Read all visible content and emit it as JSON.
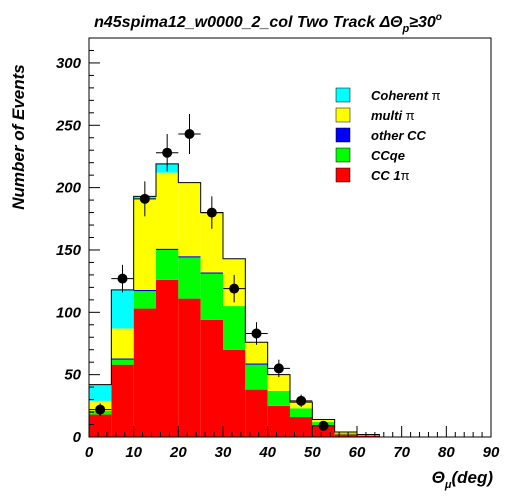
{
  "chart_data": {
    "type": "bar",
    "stacked": true,
    "title": "n45spima12_w0000_2_col Two Track ΔΘ",
    "title_sub": "p",
    "title_tail": "≥30",
    "title_sup": "o",
    "xlabel": "Θ",
    "xlabel_sub": "μ",
    "xlabel_tail": "(deg)",
    "ylabel": "Number of Events",
    "xlim": [
      0,
      90
    ],
    "ylim": [
      0,
      320
    ],
    "xticks": [
      0,
      10,
      20,
      30,
      40,
      50,
      60,
      70,
      80,
      90
    ],
    "yticks": [
      0,
      50,
      100,
      150,
      200,
      250,
      300
    ],
    "bin_edges": [
      0,
      5,
      10,
      15,
      20,
      25,
      30,
      35,
      40,
      45,
      50,
      55,
      60,
      65,
      70,
      75,
      80,
      85,
      90
    ],
    "series": [
      {
        "name": "CC 1π",
        "label_text": "CC 1",
        "label_symbol": "π",
        "color": "#ff0000",
        "values": [
          18,
          58,
          103,
          126,
          111,
          94,
          70,
          38,
          25,
          16,
          9,
          2,
          1,
          0,
          0,
          0,
          0,
          0
        ]
      },
      {
        "name": "CCqe",
        "label_text": "CCqe",
        "label_symbol": "",
        "color": "#00ff00",
        "values": [
          3,
          4,
          14,
          24,
          33,
          37,
          35,
          20,
          12,
          7,
          3,
          1,
          1,
          0,
          0,
          0,
          0,
          0
        ]
      },
      {
        "name": "other CC",
        "label_text": "other CC",
        "label_symbol": "",
        "color": "#0000ff",
        "values": [
          0,
          1,
          1,
          1,
          1,
          1,
          0,
          1,
          0,
          0,
          0,
          0,
          0,
          0,
          0,
          0,
          0,
          0
        ]
      },
      {
        "name": "multi π",
        "label_text": "multi ",
        "label_symbol": "π",
        "color": "#ffff00",
        "values": [
          8,
          24,
          73,
          61,
          59,
          48,
          38,
          17,
          13,
          5,
          2,
          1,
          0,
          0,
          0,
          0,
          0,
          0
        ]
      },
      {
        "name": "Coherent π",
        "label_text": "Coherent ",
        "label_symbol": "π",
        "color": "#00ffff",
        "values": [
          13,
          31,
          2,
          7,
          0,
          0,
          0,
          0,
          0,
          0,
          0,
          0,
          0,
          0,
          0,
          0,
          0,
          0
        ]
      }
    ],
    "legend_order": [
      4,
      3,
      2,
      1,
      0
    ],
    "data_points": {
      "x": [
        2.5,
        7.5,
        12.5,
        17.5,
        22.5,
        27.5,
        32.5,
        37.5,
        42.5,
        47.5,
        52.5
      ],
      "y": [
        22,
        127,
        191,
        228,
        243,
        180,
        119,
        83,
        55,
        29,
        9
      ],
      "yerr": [
        5,
        11,
        14,
        15,
        16,
        13,
        11,
        9,
        7,
        5,
        3
      ]
    },
    "legend_position": "top-right",
    "grid": false
  }
}
